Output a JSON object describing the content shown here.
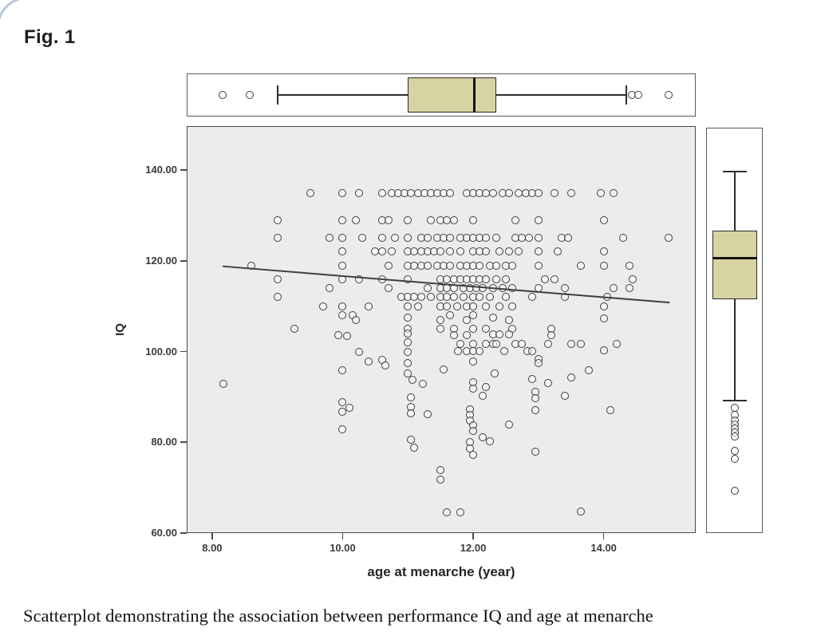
{
  "figure": {
    "label": "Fig. 1",
    "caption": "Scatterplot demonstrating the association between performance IQ and age at menarche"
  },
  "chart_data": {
    "type": "scatter",
    "xlabel": "age at menarche (year)",
    "ylabel": "IQ",
    "xlim": [
      7.61,
      15.41
    ],
    "ylim": [
      60,
      149.7
    ],
    "x_ticks": [
      8,
      10,
      12,
      14
    ],
    "x_tick_labels": [
      "8.00",
      "10.00",
      "12.00",
      "14.00"
    ],
    "y_ticks": [
      60,
      80,
      100,
      120,
      140
    ],
    "y_tick_labels": [
      "60.00",
      "80.00",
      "100.00",
      "120.00",
      "140.00"
    ],
    "grid": false,
    "plot_bg": "#ececec",
    "box_fill": "#d8d3a3",
    "marker": "open-circle",
    "regression_line": {
      "x1": 8.16,
      "y1": 118.8,
      "x2": 15.01,
      "y2": 110.8
    },
    "x_boxplot": {
      "outliers_low": [
        8.16,
        8.58
      ],
      "whisker_low": 9.0,
      "q1": 11.0,
      "median": 12.02,
      "q3": 12.35,
      "whisker_high": 14.35,
      "outliers_high": [
        14.43,
        14.53,
        15.0
      ]
    },
    "y_boxplot": {
      "whisker_high": 139.7,
      "q3": 126.7,
      "median": 120.6,
      "q1": 111.6,
      "whisker_low": 89.2,
      "outliers_low": [
        87.6,
        86.0,
        84.8,
        83.9,
        83.0,
        82.2,
        81.3,
        78.1,
        76.3,
        69.3
      ]
    },
    "points": [
      [
        9.5,
        135
      ],
      [
        10.0,
        135
      ],
      [
        10.25,
        135
      ],
      [
        10.6,
        135
      ],
      [
        10.75,
        135
      ],
      [
        10.85,
        135
      ],
      [
        10.95,
        135
      ],
      [
        11.05,
        135
      ],
      [
        11.15,
        135
      ],
      [
        11.25,
        135
      ],
      [
        11.35,
        135
      ],
      [
        11.45,
        135
      ],
      [
        11.55,
        135
      ],
      [
        11.65,
        135
      ],
      [
        11.9,
        135
      ],
      [
        12.0,
        135
      ],
      [
        12.1,
        135
      ],
      [
        12.2,
        135
      ],
      [
        12.3,
        135
      ],
      [
        12.45,
        135
      ],
      [
        12.55,
        135
      ],
      [
        12.7,
        135
      ],
      [
        12.8,
        135
      ],
      [
        12.9,
        135
      ],
      [
        13.0,
        135
      ],
      [
        13.25,
        135
      ],
      [
        13.5,
        135
      ],
      [
        13.95,
        135
      ],
      [
        14.15,
        135
      ],
      [
        9.0,
        129
      ],
      [
        10.0,
        129
      ],
      [
        10.2,
        129
      ],
      [
        10.6,
        129
      ],
      [
        10.7,
        129
      ],
      [
        11.0,
        129
      ],
      [
        11.35,
        129
      ],
      [
        11.5,
        129
      ],
      [
        11.6,
        129
      ],
      [
        11.7,
        129
      ],
      [
        12.0,
        129
      ],
      [
        12.65,
        129
      ],
      [
        13.0,
        129
      ],
      [
        14.0,
        129
      ],
      [
        9.0,
        125
      ],
      [
        9.8,
        125
      ],
      [
        10.0,
        125
      ],
      [
        10.3,
        125
      ],
      [
        10.6,
        125
      ],
      [
        10.8,
        125
      ],
      [
        11.0,
        125
      ],
      [
        11.2,
        125
      ],
      [
        11.3,
        125
      ],
      [
        11.45,
        125
      ],
      [
        11.55,
        125
      ],
      [
        11.65,
        125
      ],
      [
        11.8,
        125
      ],
      [
        11.9,
        125
      ],
      [
        12.0,
        125
      ],
      [
        12.1,
        125
      ],
      [
        12.2,
        125
      ],
      [
        12.35,
        125
      ],
      [
        12.65,
        125
      ],
      [
        12.75,
        125
      ],
      [
        12.85,
        125
      ],
      [
        13.0,
        125
      ],
      [
        13.35,
        125
      ],
      [
        13.45,
        125
      ],
      [
        14.3,
        125
      ],
      [
        15.0,
        125
      ],
      [
        10.0,
        122
      ],
      [
        10.5,
        122
      ],
      [
        10.6,
        122
      ],
      [
        10.75,
        122
      ],
      [
        11.0,
        122
      ],
      [
        11.1,
        122
      ],
      [
        11.2,
        122
      ],
      [
        11.3,
        122
      ],
      [
        11.4,
        122
      ],
      [
        11.5,
        122
      ],
      [
        11.65,
        122
      ],
      [
        11.8,
        122
      ],
      [
        12.0,
        122
      ],
      [
        12.1,
        122
      ],
      [
        12.2,
        122
      ],
      [
        12.4,
        122
      ],
      [
        12.55,
        122
      ],
      [
        12.7,
        122
      ],
      [
        13.0,
        122
      ],
      [
        13.3,
        122
      ],
      [
        14.0,
        122
      ],
      [
        8.6,
        119
      ],
      [
        10.0,
        119
      ],
      [
        10.7,
        119
      ],
      [
        11.0,
        119
      ],
      [
        11.1,
        119
      ],
      [
        11.2,
        119
      ],
      [
        11.3,
        119
      ],
      [
        11.45,
        119
      ],
      [
        11.55,
        119
      ],
      [
        11.65,
        119
      ],
      [
        11.8,
        119
      ],
      [
        11.9,
        119
      ],
      [
        12.0,
        119
      ],
      [
        12.1,
        119
      ],
      [
        12.25,
        119
      ],
      [
        12.35,
        119
      ],
      [
        12.5,
        119
      ],
      [
        12.6,
        119
      ],
      [
        13.0,
        119
      ],
      [
        13.65,
        119
      ],
      [
        14.0,
        119
      ],
      [
        14.4,
        119
      ],
      [
        9.0,
        116
      ],
      [
        10.0,
        116
      ],
      [
        10.25,
        116
      ],
      [
        10.6,
        116
      ],
      [
        11.0,
        116
      ],
      [
        11.5,
        116
      ],
      [
        11.6,
        116
      ],
      [
        11.7,
        116
      ],
      [
        11.8,
        116
      ],
      [
        11.9,
        116
      ],
      [
        12.0,
        116
      ],
      [
        12.1,
        116
      ],
      [
        12.2,
        116
      ],
      [
        12.35,
        116
      ],
      [
        12.5,
        116
      ],
      [
        13.1,
        116
      ],
      [
        13.25,
        116
      ],
      [
        14.45,
        116
      ],
      [
        9.8,
        114
      ],
      [
        10.7,
        114
      ],
      [
        11.3,
        114
      ],
      [
        11.5,
        114
      ],
      [
        11.6,
        114
      ],
      [
        11.7,
        114
      ],
      [
        11.85,
        114
      ],
      [
        11.95,
        114
      ],
      [
        12.05,
        114
      ],
      [
        12.15,
        114
      ],
      [
        12.3,
        114
      ],
      [
        12.45,
        114
      ],
      [
        12.6,
        114
      ],
      [
        13.0,
        114
      ],
      [
        13.4,
        114
      ],
      [
        14.15,
        114
      ],
      [
        14.4,
        114
      ],
      [
        9.0,
        112
      ],
      [
        10.9,
        112
      ],
      [
        11.0,
        112
      ],
      [
        11.1,
        112
      ],
      [
        11.2,
        112
      ],
      [
        11.35,
        112
      ],
      [
        11.5,
        112
      ],
      [
        11.6,
        112
      ],
      [
        11.7,
        112
      ],
      [
        11.85,
        112
      ],
      [
        12.0,
        112
      ],
      [
        12.1,
        112
      ],
      [
        12.25,
        112
      ],
      [
        12.5,
        112
      ],
      [
        12.9,
        112
      ],
      [
        13.4,
        112
      ],
      [
        14.05,
        112
      ],
      [
        9.7,
        110
      ],
      [
        10.0,
        110
      ],
      [
        10.4,
        110
      ],
      [
        11.0,
        110
      ],
      [
        11.15,
        110
      ],
      [
        11.5,
        110
      ],
      [
        11.6,
        110
      ],
      [
        11.75,
        110
      ],
      [
        11.9,
        110
      ],
      [
        12.0,
        110
      ],
      [
        12.2,
        110
      ],
      [
        12.4,
        110
      ],
      [
        12.6,
        110
      ],
      [
        14.0,
        110
      ],
      [
        10.0,
        108
      ],
      [
        10.15,
        108
      ],
      [
        10.2,
        107
      ],
      [
        11.0,
        107.5
      ],
      [
        11.5,
        107
      ],
      [
        11.65,
        108
      ],
      [
        11.9,
        107
      ],
      [
        12.0,
        108
      ],
      [
        12.3,
        107.5
      ],
      [
        12.55,
        107
      ],
      [
        14.0,
        107.3
      ],
      [
        9.26,
        105
      ],
      [
        11.0,
        105
      ],
      [
        11.5,
        105
      ],
      [
        11.7,
        105
      ],
      [
        12.0,
        105
      ],
      [
        12.2,
        105
      ],
      [
        12.6,
        105
      ],
      [
        13.2,
        105
      ],
      [
        9.93,
        103.7
      ],
      [
        10.07,
        103.4
      ],
      [
        11.0,
        104
      ],
      [
        11.7,
        103.7
      ],
      [
        11.9,
        103.7
      ],
      [
        12.3,
        103.8
      ],
      [
        12.4,
        103.8
      ],
      [
        12.55,
        103.8
      ],
      [
        13.2,
        103.7
      ],
      [
        11.0,
        102
      ],
      [
        11.8,
        101.7
      ],
      [
        12.0,
        101.7
      ],
      [
        12.2,
        101.7
      ],
      [
        12.3,
        101.7
      ],
      [
        12.35,
        101.7
      ],
      [
        12.65,
        101.7
      ],
      [
        12.75,
        101.7
      ],
      [
        13.15,
        101.7
      ],
      [
        13.5,
        101.7
      ],
      [
        13.65,
        101.7
      ],
      [
        14.2,
        101.7
      ],
      [
        10.25,
        99.9
      ],
      [
        11.0,
        100
      ],
      [
        11.77,
        100.1
      ],
      [
        11.9,
        100.1
      ],
      [
        12.0,
        100.1
      ],
      [
        12.1,
        100.1
      ],
      [
        12.47,
        100.1
      ],
      [
        12.83,
        100.1
      ],
      [
        12.9,
        100.1
      ],
      [
        14.0,
        100.3
      ],
      [
        10.4,
        97.8
      ],
      [
        10.6,
        98.1
      ],
      [
        10.65,
        96.9
      ],
      [
        11.0,
        97.4
      ],
      [
        12.0,
        97.9
      ],
      [
        13.0,
        98.4
      ],
      [
        13.0,
        97.4
      ],
      [
        10.0,
        95.9
      ],
      [
        11.0,
        95.1
      ],
      [
        11.55,
        96.0
      ],
      [
        12.33,
        95.1
      ],
      [
        13.77,
        95.9
      ],
      [
        8.17,
        92.9
      ],
      [
        11.07,
        93.7
      ],
      [
        11.23,
        92.9
      ],
      [
        12.0,
        93.3
      ],
      [
        12.9,
        93.9
      ],
      [
        13.15,
        93.1
      ],
      [
        13.5,
        94.3
      ],
      [
        11.05,
        89.9
      ],
      [
        12.0,
        91.9
      ],
      [
        12.15,
        90.3
      ],
      [
        12.2,
        92.1
      ],
      [
        12.95,
        91.2
      ],
      [
        12.95,
        89.8
      ],
      [
        13.4,
        90.3
      ],
      [
        10.0,
        88.8
      ],
      [
        10.1,
        87.6
      ],
      [
        10.0,
        86.7
      ],
      [
        11.05,
        87.8
      ],
      [
        11.05,
        86.4
      ],
      [
        11.3,
        86.2
      ],
      [
        11.95,
        87.3
      ],
      [
        11.95,
        86.0
      ],
      [
        12.95,
        87.1
      ],
      [
        14.1,
        87.1
      ],
      [
        10.0,
        82.9
      ],
      [
        11.95,
        84.8
      ],
      [
        12.0,
        83.7
      ],
      [
        12.0,
        82.6
      ],
      [
        12.55,
        83.9
      ],
      [
        11.05,
        80.6
      ],
      [
        11.1,
        78.8
      ],
      [
        11.95,
        80.0
      ],
      [
        12.15,
        81.1
      ],
      [
        12.25,
        80.2
      ],
      [
        11.95,
        78.6
      ],
      [
        12.0,
        77.2
      ],
      [
        12.95,
        77.9
      ],
      [
        11.5,
        73.9
      ],
      [
        11.5,
        71.8
      ],
      [
        11.6,
        64.5
      ],
      [
        11.8,
        64.5
      ],
      [
        13.65,
        64.7
      ]
    ]
  }
}
